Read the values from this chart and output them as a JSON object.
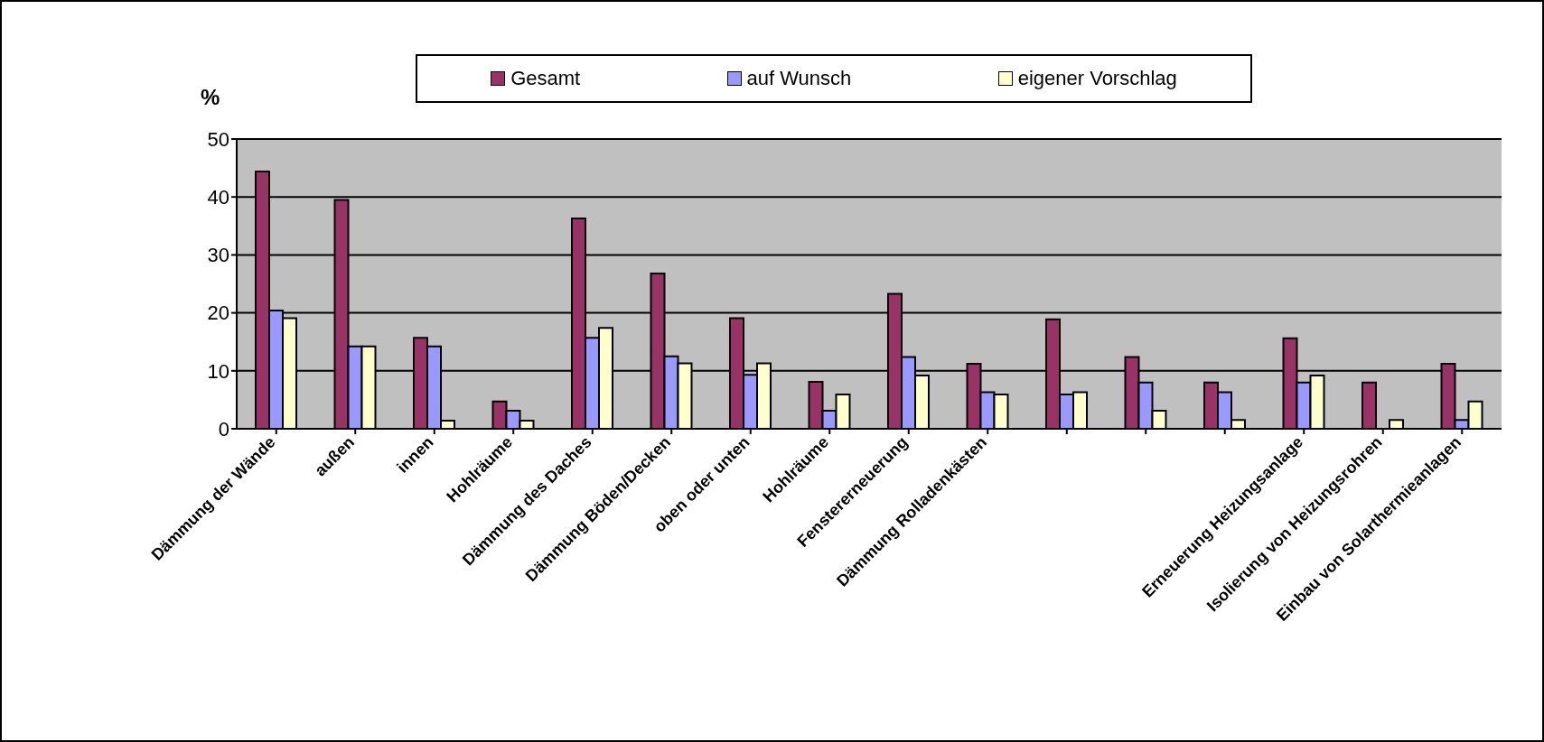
{
  "chart_data": {
    "type": "bar",
    "ylabel": "%",
    "categories": [
      "Dämmung der Wände",
      "außen",
      "innen",
      "Hohlräume",
      "Dämmung des Daches",
      "Dämmung Böden/Decken",
      "oben oder unten",
      "Hohlräume",
      "Fenstererneuerung",
      "Dämmung Rolladenkästen",
      null,
      null,
      null,
      "Erneuerung Heizungsanlage",
      "Isolierung von Heizungsrohren",
      "Einbau von Solarthermieanlagen"
    ],
    "series": [
      {
        "name": "Gesamt",
        "color": "#993366",
        "values": [
          44.4,
          39.5,
          15.7,
          4.7,
          36.3,
          26.8,
          19.1,
          8.1,
          23.3,
          11.2,
          18.9,
          12.4,
          8.0,
          15.6,
          8.0,
          11.2
        ]
      },
      {
        "name": "auf Wunsch",
        "color": "#9999ff",
        "values": [
          20.4,
          14.2,
          14.2,
          3.1,
          15.7,
          12.5,
          9.3,
          3.1,
          12.4,
          6.3,
          5.9,
          8.0,
          6.3,
          8.0,
          0,
          1.5
        ]
      },
      {
        "name": "eigener Vorschlag",
        "color": "#ffffcc",
        "values": [
          19.1,
          14.2,
          1.4,
          1.4,
          17.4,
          11.3,
          11.3,
          5.9,
          9.2,
          5.9,
          6.3,
          3.1,
          1.5,
          9.2,
          1.5,
          4.7
        ]
      }
    ],
    "ylim": [
      0,
      50
    ],
    "yticks": [
      0,
      10,
      20,
      30,
      40,
      50
    ],
    "grid": "y",
    "legend": "top"
  }
}
